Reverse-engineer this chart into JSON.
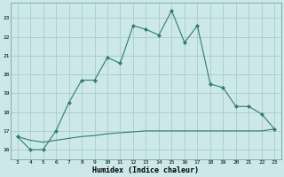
{
  "xlabel": "Humidex (Indice chaleur)",
  "x_values": [
    3,
    4,
    5,
    6,
    7,
    8,
    9,
    10,
    11,
    12,
    13,
    14,
    15,
    16,
    17,
    18,
    19,
    20,
    21,
    22,
    23
  ],
  "line1_y": [
    16.7,
    16.0,
    16.0,
    17.0,
    18.5,
    19.7,
    19.7,
    20.9,
    20.6,
    22.6,
    22.4,
    22.1,
    23.4,
    21.7,
    22.6,
    19.5,
    19.3,
    18.3,
    18.3,
    17.9,
    17.1
  ],
  "line2_y": [
    16.7,
    16.5,
    16.4,
    16.5,
    16.6,
    16.7,
    16.75,
    16.85,
    16.9,
    16.95,
    17.0,
    17.0,
    17.0,
    17.0,
    17.0,
    17.0,
    17.0,
    17.0,
    17.0,
    17.0,
    17.1
  ],
  "line_color": "#2e7d6e",
  "bg_color": "#cce8e8",
  "grid_color": "#a8cccc",
  "ylim": [
    15.5,
    23.8
  ],
  "xlim": [
    2.5,
    23.5
  ],
  "yticks": [
    16,
    17,
    18,
    19,
    20,
    21,
    22,
    23
  ],
  "xticks": [
    3,
    4,
    5,
    6,
    7,
    8,
    9,
    10,
    11,
    12,
    13,
    14,
    15,
    16,
    17,
    18,
    19,
    20,
    21,
    22,
    23
  ]
}
